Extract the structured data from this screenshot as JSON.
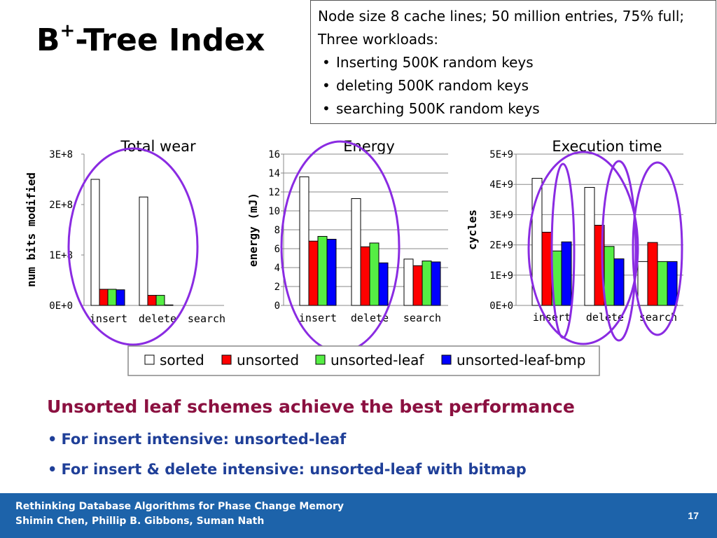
{
  "slide": {
    "title_main": "B",
    "title_sup": "+",
    "title_rest": "-Tree Index"
  },
  "info": {
    "line1": "Node size 8 cache lines; 50 million entries, 75% full;",
    "line2": "Three workloads:",
    "items": [
      "Inserting 500K random keys",
      "deleting 500K random keys",
      "searching 500K random keys"
    ]
  },
  "chart_data": [
    {
      "type": "bar",
      "title": "Total wear",
      "ylabel": "num bits modified",
      "categories": [
        "insert",
        "delete",
        "search"
      ],
      "yticks": [
        "0E+0",
        "1E+8",
        "2E+8",
        "3E+8"
      ],
      "ylim": [
        0,
        300000000
      ],
      "grid": false,
      "series": [
        {
          "name": "sorted",
          "values": [
            250000000,
            215000000,
            0
          ]
        },
        {
          "name": "unsorted",
          "values": [
            32000000,
            20000000,
            0
          ]
        },
        {
          "name": "unsorted-leaf",
          "values": [
            32000000,
            20000000,
            0
          ]
        },
        {
          "name": "unsorted-leaf-bmp",
          "values": [
            31000000,
            1000000,
            0
          ]
        }
      ]
    },
    {
      "type": "bar",
      "title": "Energy",
      "ylabel": "energy (mJ)",
      "categories": [
        "insert",
        "delete",
        "search"
      ],
      "yticks": [
        "0",
        "2",
        "4",
        "6",
        "8",
        "10",
        "12",
        "14",
        "16"
      ],
      "ylim": [
        0,
        16
      ],
      "grid": true,
      "series": [
        {
          "name": "sorted",
          "values": [
            13.6,
            11.3,
            4.9
          ]
        },
        {
          "name": "unsorted",
          "values": [
            6.8,
            6.2,
            4.2
          ]
        },
        {
          "name": "unsorted-leaf",
          "values": [
            7.3,
            6.6,
            4.7
          ]
        },
        {
          "name": "unsorted-leaf-bmp",
          "values": [
            7.0,
            4.5,
            4.6
          ]
        }
      ]
    },
    {
      "type": "bar",
      "title": "Execution time",
      "ylabel": "cycles",
      "categories": [
        "insert",
        "delete",
        "search"
      ],
      "yticks": [
        "0E+0",
        "1E+9",
        "2E+9",
        "3E+9",
        "4E+9",
        "5E+9"
      ],
      "ylim": [
        0,
        5000000000
      ],
      "grid": true,
      "series": [
        {
          "name": "sorted",
          "values": [
            4200000000,
            3900000000,
            1450000000
          ]
        },
        {
          "name": "unsorted",
          "values": [
            2420000000,
            2650000000,
            2080000000
          ]
        },
        {
          "name": "unsorted-leaf",
          "values": [
            1800000000,
            1950000000,
            1450000000
          ]
        },
        {
          "name": "unsorted-leaf-bmp",
          "values": [
            2100000000,
            1540000000,
            1450000000
          ]
        }
      ]
    }
  ],
  "legend": {
    "items": [
      {
        "label": "sorted",
        "color": "#ffffff"
      },
      {
        "label": "unsorted",
        "color": "#ff0000"
      },
      {
        "label": "unsorted-leaf",
        "color": "#55ee44"
      },
      {
        "label": "unsorted-leaf-bmp",
        "color": "#0000ff"
      }
    ]
  },
  "colors": {
    "series": [
      "#ffffff",
      "#ff0000",
      "#55ee44",
      "#0000ff"
    ],
    "annotation_circle": "#8a2be2",
    "headline": "#8b1040",
    "bullets": "#1f3f98",
    "footer_bg": "#1d63aa"
  },
  "conclusion": {
    "headline": "Unsorted leaf schemes achieve the best performance",
    "bullet1": "For insert intensive: unsorted-leaf",
    "bullet2": "For insert & delete intensive: unsorted-leaf with bitmap"
  },
  "footer": {
    "line1": "Rethinking Database Algorithms for Phase Change Memory",
    "line2": "Shimin Chen, Phillip B. Gibbons, Suman Nath",
    "page": "17"
  }
}
